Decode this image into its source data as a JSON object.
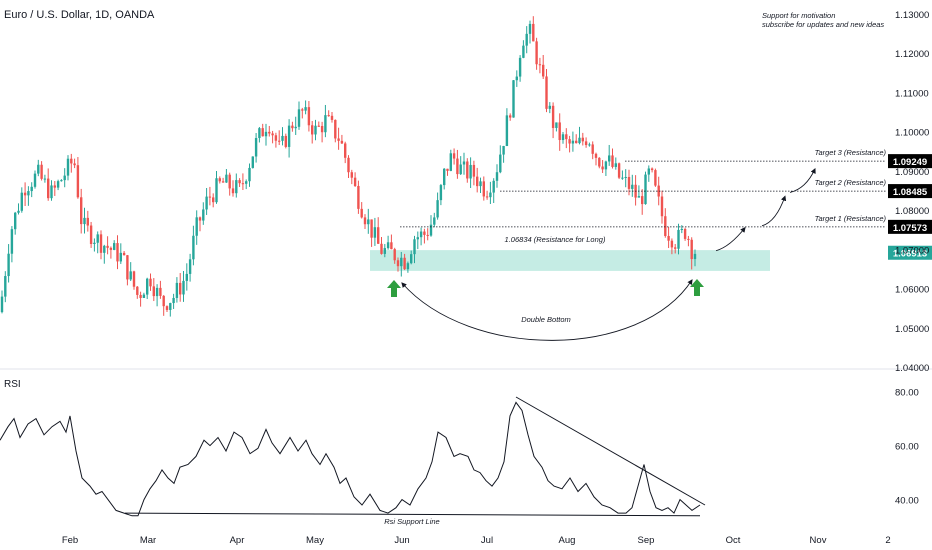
{
  "header": {
    "title": "Euro / U.S. Dollar, 1D, OANDA",
    "note_line1": "Support for motivation",
    "note_line2": "subscribe for updates and new ideas"
  },
  "colors": {
    "up": "#26a69a",
    "down": "#ef5350",
    "zone": "#c5ece4",
    "arrow": "#2e9e3f",
    "last_price": "#26a69a",
    "target_label": "#000000",
    "line": "#131722",
    "axis_text": "#131722",
    "separator": "#e0e3eb"
  },
  "chart_data": [
    {
      "type": "candlestick",
      "title": "Euro / U.S. Dollar, 1D, OANDA",
      "price_axis": {
        "ticks": [
          "1.13000",
          "1.12000",
          "1.11000",
          "1.10000",
          "1.09000",
          "1.08000",
          "1.07000",
          "1.06000",
          "1.05000",
          "1.04000"
        ],
        "range": [
          1.04,
          1.13
        ]
      },
      "time_axis": {
        "ticks": [
          "Feb",
          "Mar",
          "Apr",
          "May",
          "Jun",
          "Jul",
          "Aug",
          "Sep",
          "Oct",
          "Nov",
          "2"
        ]
      },
      "price_path": [
        [
          0,
          1.054
        ],
        [
          10,
          1.074
        ],
        [
          24,
          1.086
        ],
        [
          38,
          1.089
        ],
        [
          52,
          1.084
        ],
        [
          64,
          1.089
        ],
        [
          74,
          1.093
        ],
        [
          82,
          1.076
        ],
        [
          100,
          1.072
        ],
        [
          122,
          1.068
        ],
        [
          138,
          1.058
        ],
        [
          150,
          1.063
        ],
        [
          162,
          1.056
        ],
        [
          174,
          1.058
        ],
        [
          186,
          1.063
        ],
        [
          196,
          1.075
        ],
        [
          208,
          1.083
        ],
        [
          222,
          1.087
        ],
        [
          240,
          1.085
        ],
        [
          256,
          1.097
        ],
        [
          268,
          1.103
        ],
        [
          280,
          1.095
        ],
        [
          292,
          1.102
        ],
        [
          302,
          1.105
        ],
        [
          316,
          1.1
        ],
        [
          326,
          1.103
        ],
        [
          340,
          1.098
        ],
        [
          354,
          1.086
        ],
        [
          366,
          1.078
        ],
        [
          380,
          1.07
        ],
        [
          392,
          1.069
        ],
        [
          406,
          1.067
        ],
        [
          414,
          1.073
        ],
        [
          426,
          1.074
        ],
        [
          436,
          1.079
        ],
        [
          444,
          1.089
        ],
        [
          452,
          1.094
        ],
        [
          462,
          1.09
        ],
        [
          474,
          1.089
        ],
        [
          486,
          1.085
        ],
        [
          496,
          1.09
        ],
        [
          506,
          1.101
        ],
        [
          514,
          1.111
        ],
        [
          522,
          1.124
        ],
        [
          530,
          1.125
        ],
        [
          538,
          1.118
        ],
        [
          546,
          1.108
        ],
        [
          556,
          1.1
        ],
        [
          566,
          1.097
        ],
        [
          576,
          1.096
        ],
        [
          588,
          1.099
        ],
        [
          598,
          1.093
        ],
        [
          610,
          1.092
        ],
        [
          620,
          1.088
        ],
        [
          630,
          1.086
        ],
        [
          640,
          1.082
        ],
        [
          650,
          1.09
        ],
        [
          656,
          1.084
        ],
        [
          666,
          1.075
        ],
        [
          676,
          1.072
        ],
        [
          686,
          1.075
        ],
        [
          692,
          1.07
        ],
        [
          700,
          1.069
        ]
      ],
      "last_price": "1.06913",
      "zone": {
        "top": 1.0698,
        "bottom": 1.0645,
        "label": "1.06834 (Resistance for Long)",
        "from_x": 370,
        "to_x": 770
      },
      "targets": [
        {
          "label": "Target 1 (Resistance)",
          "price": 1.07573,
          "price_label": "1.07573",
          "from_x": 400
        },
        {
          "label": "Target 2 (Resistance)",
          "price": 1.08485,
          "price_label": "1.08485",
          "from_x": 500
        },
        {
          "label": "Target 3 (Resistance)",
          "price": 1.09249,
          "price_label": "1.09249",
          "from_x": 625
        }
      ],
      "annotations": {
        "double_bottom": "Double Bottom"
      }
    },
    {
      "type": "line",
      "title": "RSI",
      "y_axis": {
        "ticks": [
          "80.00",
          "60.00",
          "40.00"
        ],
        "range": [
          28,
          88
        ]
      },
      "support_line_label": "Rsi Support Line",
      "rsi_path": [
        [
          0,
          62
        ],
        [
          8,
          67
        ],
        [
          14,
          70
        ],
        [
          20,
          63
        ],
        [
          28,
          68
        ],
        [
          36,
          70
        ],
        [
          44,
          64
        ],
        [
          52,
          67
        ],
        [
          60,
          69
        ],
        [
          66,
          65
        ],
        [
          70,
          71
        ],
        [
          76,
          58
        ],
        [
          82,
          48
        ],
        [
          90,
          45
        ],
        [
          96,
          42
        ],
        [
          102,
          43
        ],
        [
          108,
          40
        ],
        [
          116,
          36
        ],
        [
          124,
          35
        ],
        [
          132,
          34
        ],
        [
          138,
          34
        ],
        [
          144,
          40
        ],
        [
          150,
          44
        ],
        [
          156,
          47
        ],
        [
          162,
          51
        ],
        [
          168,
          48
        ],
        [
          174,
          46
        ],
        [
          180,
          52
        ],
        [
          188,
          53
        ],
        [
          196,
          56
        ],
        [
          204,
          62
        ],
        [
          210,
          60
        ],
        [
          218,
          63
        ],
        [
          226,
          58
        ],
        [
          234,
          65
        ],
        [
          242,
          63
        ],
        [
          250,
          57
        ],
        [
          258,
          59
        ],
        [
          266,
          66
        ],
        [
          272,
          61
        ],
        [
          280,
          57
        ],
        [
          290,
          63
        ],
        [
          298,
          58
        ],
        [
          306,
          62
        ],
        [
          312,
          57
        ],
        [
          320,
          53
        ],
        [
          326,
          57
        ],
        [
          334,
          52
        ],
        [
          340,
          46
        ],
        [
          346,
          48
        ],
        [
          354,
          41
        ],
        [
          362,
          38
        ],
        [
          370,
          42
        ],
        [
          380,
          36
        ],
        [
          388,
          35
        ],
        [
          396,
          37
        ],
        [
          402,
          40
        ],
        [
          410,
          38
        ],
        [
          418,
          44
        ],
        [
          426,
          48
        ],
        [
          432,
          54
        ],
        [
          438,
          65
        ],
        [
          446,
          63
        ],
        [
          454,
          56
        ],
        [
          460,
          57
        ],
        [
          468,
          56
        ],
        [
          474,
          51
        ],
        [
          480,
          50
        ],
        [
          486,
          47
        ],
        [
          492,
          45
        ],
        [
          498,
          48
        ],
        [
          504,
          54
        ],
        [
          510,
          71
        ],
        [
          516,
          76
        ],
        [
          522,
          73
        ],
        [
          528,
          64
        ],
        [
          534,
          56
        ],
        [
          542,
          52
        ],
        [
          548,
          47
        ],
        [
          554,
          45
        ],
        [
          562,
          44
        ],
        [
          570,
          48
        ],
        [
          578,
          43
        ],
        [
          586,
          46
        ],
        [
          594,
          41
        ],
        [
          602,
          38
        ],
        [
          610,
          37
        ],
        [
          618,
          35
        ],
        [
          626,
          35
        ],
        [
          632,
          37
        ],
        [
          638,
          45
        ],
        [
          644,
          53
        ],
        [
          650,
          43
        ],
        [
          656,
          37
        ],
        [
          662,
          36
        ],
        [
          668,
          37
        ],
        [
          674,
          35
        ],
        [
          680,
          40
        ],
        [
          686,
          38
        ],
        [
          692,
          36
        ],
        [
          700,
          38
        ]
      ],
      "trend_line": [
        [
          516,
          78
        ],
        [
          705,
          38
        ]
      ],
      "support_line": [
        [
          125,
          35
        ],
        [
          700,
          34
        ]
      ]
    }
  ]
}
